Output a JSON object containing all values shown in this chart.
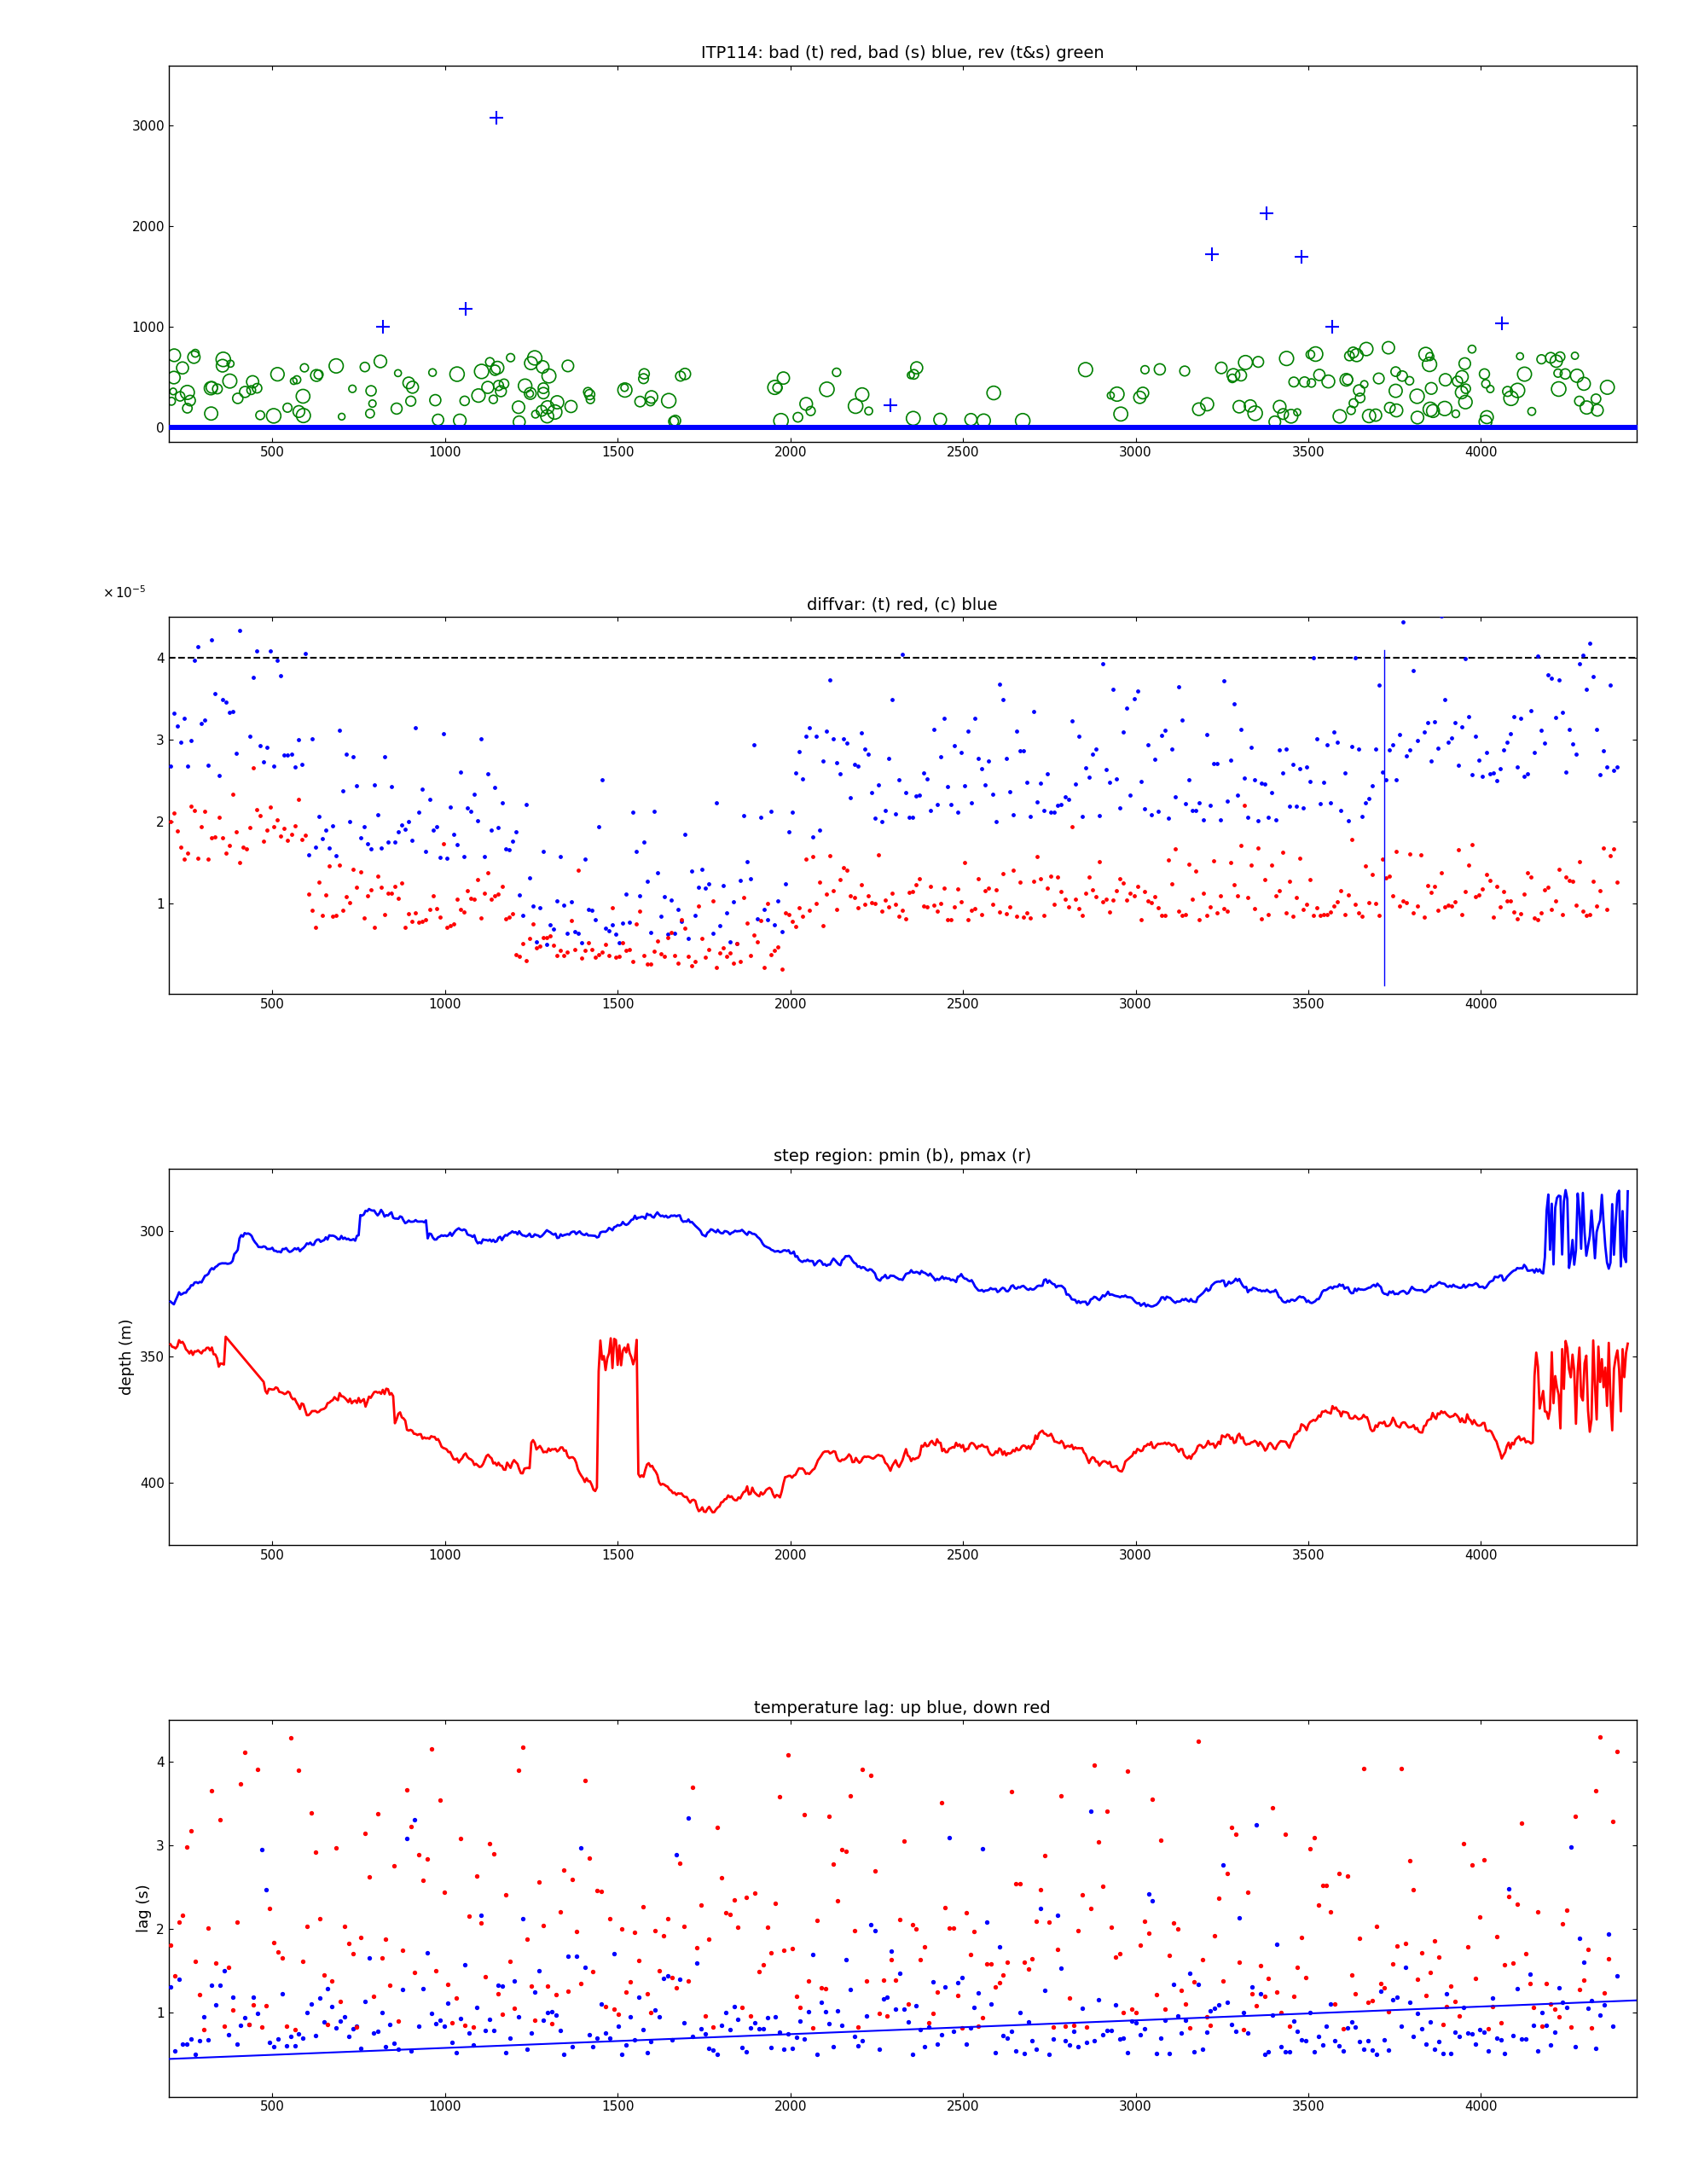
{
  "title1": "ITP114: bad (t) red, bad (s) blue, rev (t&s) green",
  "title2": "diffvar: (t) red, (c) blue",
  "title3": "step region: pmin (b), pmax (r)",
  "title4": "temperature lag: up blue, down red",
  "ylabel3": "depth (m)",
  "ylabel4": "lag (s)",
  "xlim": [
    200,
    4450
  ],
  "x_ticks": [
    500,
    1000,
    1500,
    2000,
    2500,
    3000,
    3500,
    4000
  ],
  "panel1_ylim": [
    -150,
    3600
  ],
  "panel1_yticks": [
    0,
    1000,
    2000,
    3000
  ],
  "panel2_ylim": [
    -1e-06,
    4.5e-05
  ],
  "panel2_yticks": [
    1e-05,
    2e-05,
    3e-05,
    4e-05
  ],
  "panel3_ylim": [
    425,
    275
  ],
  "panel3_yticks": [
    300,
    350,
    400
  ],
  "panel4_ylim": [
    0,
    4.5
  ],
  "panel4_yticks": [
    1,
    2,
    3,
    4
  ],
  "dashed_line_y": 4e-05
}
